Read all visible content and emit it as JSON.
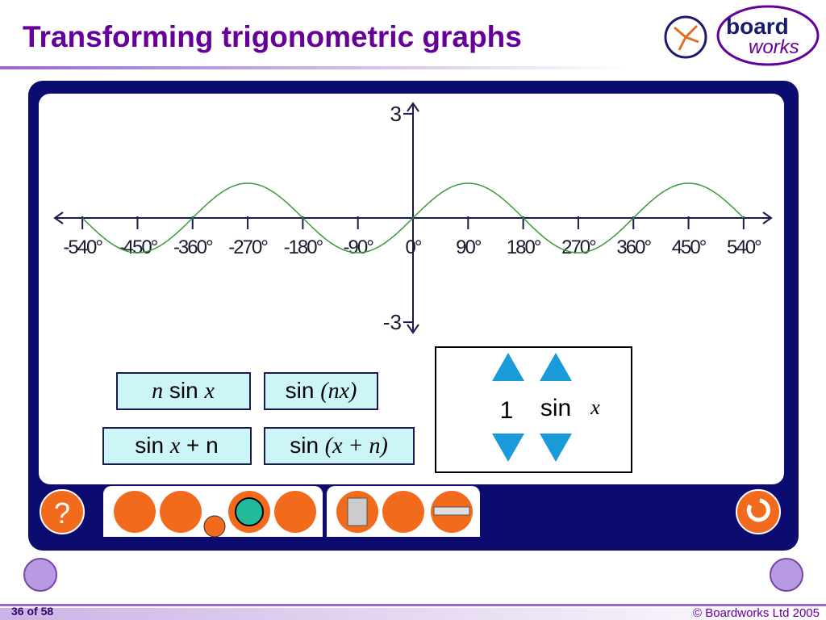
{
  "header": {
    "title": "Transforming trigonometric graphs",
    "logo": [
      "board",
      "works"
    ]
  },
  "graph": {
    "xlim": [
      -585,
      585
    ],
    "ylim": [
      -3.3,
      3.3
    ],
    "xticks": [
      {
        "value": -540,
        "label": "-540°"
      },
      {
        "value": -450,
        "label": "-450°"
      },
      {
        "value": -360,
        "label": "-360°"
      },
      {
        "value": -270,
        "label": "-270°"
      },
      {
        "value": -180,
        "label": "-180°"
      },
      {
        "value": -90,
        "label": "-90°"
      },
      {
        "value": 0,
        "label": "0°"
      },
      {
        "value": 90,
        "label": "90°"
      },
      {
        "value": 180,
        "label": "180°"
      },
      {
        "value": 270,
        "label": "270°"
      },
      {
        "value": 360,
        "label": "360°"
      },
      {
        "value": 450,
        "label": "450°"
      },
      {
        "value": 540,
        "label": "540°"
      }
    ],
    "yticks": [
      3,
      -3
    ]
  },
  "buttons": [
    [
      "n",
      "sin",
      "x"
    ],
    [
      "sin",
      "(nx)"
    ],
    [
      "sin",
      "x",
      "+ n"
    ],
    [
      "sin",
      "(x + n)"
    ]
  ],
  "controls": {
    "coefficient": 1,
    "function": "sin",
    "variable": "x"
  },
  "toolbar": {
    "help": "?"
  },
  "footer": {
    "page": "36 of 58",
    "copyright": "© Boardworks Ltd 2005"
  }
}
